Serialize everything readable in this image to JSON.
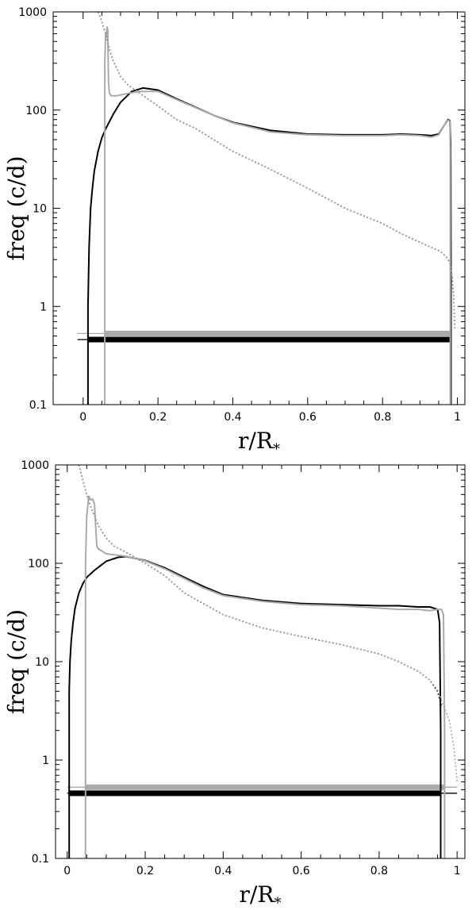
{
  "chart_data": [
    {
      "type": "line",
      "xlabel": "r/R",
      "xlabel_sub": "*",
      "ylabel": "freq (c/d)",
      "xlim": [
        -0.08,
        1.02
      ],
      "ylim": [
        0.1,
        1000
      ],
      "yscale": "log",
      "x_ticks": [
        0,
        0.2,
        0.4,
        0.6,
        0.8,
        1
      ],
      "x_tick_labels": [
        "0",
        "0.2",
        "0.4",
        "0.6",
        "0.8",
        "1"
      ],
      "y_ticks": [
        0.1,
        1,
        10,
        100,
        1000
      ],
      "y_tick_labels": [
        "0.1",
        "1",
        "10",
        "100",
        "1000"
      ],
      "series": [
        {
          "color": "#000000",
          "style": "solid",
          "x": [
            0.013,
            0.013,
            0.016,
            0.02,
            0.025,
            0.03,
            0.04,
            0.05,
            0.06,
            0.08,
            0.1,
            0.13,
            0.16,
            0.2,
            0.25,
            0.3,
            0.35,
            0.4,
            0.5,
            0.6,
            0.7,
            0.8,
            0.85,
            0.9,
            0.93,
            0.95,
            0.965,
            0.975,
            0.98,
            0.982,
            0.983,
            0.983
          ],
          "y": [
            0.05,
            1,
            4,
            10,
            16,
            24,
            38,
            52,
            64,
            90,
            120,
            155,
            168,
            160,
            130,
            107,
            88,
            75,
            62,
            57,
            56,
            56,
            57,
            56,
            55,
            57,
            70,
            80,
            78,
            45,
            2,
            0.05
          ]
        },
        {
          "color": "#aaaaaa",
          "style": "solid",
          "x": [
            0.058,
            0.058,
            0.06,
            0.062,
            0.064,
            0.066,
            0.067,
            0.068,
            0.07,
            0.075,
            0.09,
            0.12,
            0.15,
            0.2,
            0.25,
            0.3,
            0.35,
            0.4,
            0.5,
            0.6,
            0.7,
            0.8,
            0.85,
            0.9,
            0.93,
            0.95,
            0.965,
            0.975,
            0.98,
            0.981,
            0.981
          ],
          "y": [
            0.05,
            300,
            600,
            550,
            700,
            650,
            300,
            200,
            150,
            140,
            140,
            148,
            155,
            155,
            128,
            106,
            88,
            74,
            60,
            56,
            55,
            55,
            56,
            55,
            53,
            56,
            70,
            79,
            77,
            40,
            0.05
          ]
        },
        {
          "color": "#000000",
          "style": "dotted",
          "x": [
            0.04,
            0.05,
            0.06,
            0.07,
            0.08,
            0.1,
            0.12,
            0.15,
            0.2,
            0.25,
            0.3,
            0.4,
            0.5,
            0.6,
            0.7,
            0.8,
            0.85,
            0.9,
            0.93,
            0.95,
            0.96,
            0.97,
            0.98,
            0.985,
            0.99,
            0.993
          ],
          "y": [
            1000,
            800,
            600,
            420,
            320,
            220,
            180,
            150,
            110,
            80,
            65,
            38,
            25,
            16,
            10,
            7,
            5.5,
            4.5,
            4,
            3.7,
            3.5,
            3.2,
            2.8,
            2.2,
            1.3,
            0.6
          ]
        },
        {
          "color": "#aaaaaa",
          "style": "dotted",
          "x": [
            0.04,
            0.05,
            0.06,
            0.07,
            0.08,
            0.1,
            0.12,
            0.15,
            0.2,
            0.25,
            0.3,
            0.4,
            0.5,
            0.6,
            0.7,
            0.8,
            0.85,
            0.9,
            0.93,
            0.95,
            0.96,
            0.97,
            0.98,
            0.985,
            0.99,
            0.993
          ],
          "y": [
            1000,
            800,
            600,
            420,
            320,
            220,
            180,
            150,
            110,
            80,
            65,
            38,
            25,
            16,
            10,
            7,
            5.5,
            4.5,
            4,
            3.7,
            3.5,
            3.2,
            2.8,
            2.2,
            1.3,
            0.6
          ]
        }
      ],
      "bands": [
        {
          "color": "#aaaaaa",
          "x": [
            0.06,
            0.982
          ],
          "y": 0.53,
          "thick": true
        },
        {
          "color": "#000000",
          "x": [
            0.013,
            0.983
          ],
          "y": 0.46,
          "thick": true
        },
        {
          "color": "#aaaaaa",
          "x": [
            -0.015,
            0.06
          ],
          "y": 0.53,
          "thick": false
        },
        {
          "color": "#000000",
          "x": [
            -0.015,
            0.013
          ],
          "y": 0.46,
          "thick": false
        }
      ]
    },
    {
      "type": "line",
      "xlabel": "r/R",
      "xlabel_sub": "*",
      "ylabel": "freq (c/d)",
      "xlim": [
        -0.03,
        1.02
      ],
      "ylim": [
        0.1,
        1000
      ],
      "yscale": "log",
      "x_ticks": [
        0,
        0.2,
        0.4,
        0.6,
        0.8,
        1
      ],
      "x_tick_labels": [
        "0",
        "0.2",
        "0.4",
        "0.6",
        "0.8",
        "1"
      ],
      "y_ticks": [
        0.1,
        1,
        10,
        100,
        1000
      ],
      "y_tick_labels": [
        "0.1",
        "1",
        "10",
        "100",
        "1000"
      ],
      "series": [
        {
          "color": "#000000",
          "style": "solid",
          "x": [
            0.005,
            0.005,
            0.007,
            0.01,
            0.015,
            0.02,
            0.03,
            0.04,
            0.05,
            0.07,
            0.1,
            0.13,
            0.15,
            0.2,
            0.25,
            0.3,
            0.35,
            0.4,
            0.5,
            0.6,
            0.7,
            0.8,
            0.85,
            0.9,
            0.93,
            0.95,
            0.955,
            0.958,
            0.958
          ],
          "y": [
            0.05,
            5,
            10,
            16,
            25,
            35,
            50,
            62,
            72,
            85,
            105,
            115,
            117,
            107,
            90,
            72,
            58,
            48,
            42,
            39,
            38,
            37,
            37,
            36,
            36,
            34,
            25,
            2,
            0.05
          ]
        },
        {
          "color": "#aaaaaa",
          "style": "solid",
          "x": [
            0.047,
            0.047,
            0.05,
            0.055,
            0.06,
            0.065,
            0.07,
            0.074,
            0.076,
            0.08,
            0.1,
            0.15,
            0.2,
            0.25,
            0.3,
            0.35,
            0.4,
            0.5,
            0.6,
            0.7,
            0.8,
            0.85,
            0.9,
            0.93,
            0.95,
            0.96,
            0.965,
            0.968,
            0.968
          ],
          "y": [
            0.05,
            100,
            300,
            480,
            440,
            450,
            400,
            200,
            150,
            140,
            125,
            118,
            106,
            88,
            70,
            56,
            47,
            41,
            38,
            37,
            35,
            34,
            34,
            33,
            34,
            34,
            30,
            2,
            0.05
          ]
        },
        {
          "color": "#000000",
          "style": "dotted",
          "x": [
            0.03,
            0.04,
            0.05,
            0.06,
            0.08,
            0.1,
            0.12,
            0.15,
            0.2,
            0.25,
            0.3,
            0.4,
            0.5,
            0.6,
            0.7,
            0.8,
            0.85,
            0.9,
            0.93,
            0.95,
            0.96
          ],
          "y": [
            1000,
            700,
            500,
            380,
            240,
            180,
            150,
            130,
            100,
            75,
            50,
            30,
            22,
            18,
            15,
            12,
            10,
            8,
            6.5,
            5,
            3.5
          ]
        },
        {
          "color": "#aaaaaa",
          "style": "dotted",
          "x": [
            0.03,
            0.04,
            0.05,
            0.06,
            0.08,
            0.1,
            0.12,
            0.15,
            0.2,
            0.25,
            0.3,
            0.4,
            0.5,
            0.6,
            0.7,
            0.8,
            0.85,
            0.9,
            0.93,
            0.95,
            0.97,
            0.98,
            0.99,
            0.995,
            1.0
          ],
          "y": [
            1000,
            700,
            500,
            380,
            240,
            180,
            150,
            130,
            100,
            75,
            50,
            30,
            22,
            18,
            15,
            12,
            10,
            8,
            6.5,
            5.2,
            3.2,
            2.5,
            1.5,
            1.0,
            0.6
          ]
        }
      ],
      "bands": [
        {
          "color": "#aaaaaa",
          "x": [
            0.047,
            0.968
          ],
          "y": 0.53,
          "thick": true
        },
        {
          "color": "#000000",
          "x": [
            0.005,
            0.958
          ],
          "y": 0.46,
          "thick": true
        },
        {
          "color": "#aaaaaa",
          "x": [
            0.0,
            1.0
          ],
          "y": 0.53,
          "thick": false
        },
        {
          "color": "#000000",
          "x": [
            0.0,
            1.0
          ],
          "y": 0.46,
          "thick": false
        }
      ]
    }
  ]
}
